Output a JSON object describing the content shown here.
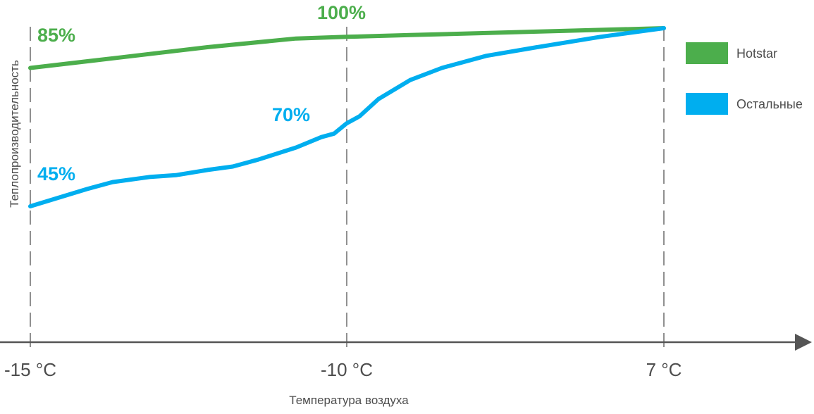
{
  "chart_data": {
    "type": "line",
    "title": "",
    "xlabel": "Температура воздуха",
    "ylabel": "Теплопроизводительность",
    "x_ticks": [
      "-15 °C",
      "-10 °C",
      "7 °C"
    ],
    "grid": "vertical dashed lines at x ticks",
    "legend": "right",
    "series": [
      {
        "name": "Hotstar",
        "color": "#4cae4c",
        "x": [
          0,
          0.14,
          0.28,
          0.42,
          0.5,
          0.6,
          0.8,
          1.0
        ],
        "y": [
          85,
          88,
          91,
          93.5,
          94,
          94.5,
          95.5,
          96.5
        ]
      },
      {
        "name": "Остальные",
        "color": "#00aeef",
        "x": [
          0,
          0.09,
          0.13,
          0.19,
          0.23,
          0.28,
          0.32,
          0.36,
          0.42,
          0.46,
          0.48,
          0.5,
          0.52,
          0.55,
          0.6,
          0.65,
          0.72,
          0.8,
          0.9,
          1.0
        ],
        "y": [
          45,
          50,
          52,
          53.5,
          54,
          55.5,
          56.5,
          58.5,
          62,
          65,
          66,
          69,
          71,
          76,
          81.5,
          85,
          88.5,
          91,
          94,
          96.5
        ]
      }
    ],
    "annotations": [
      {
        "text": "85%",
        "series": 0
      },
      {
        "text": "100%",
        "series": 0
      },
      {
        "text": "45%",
        "series": 1
      },
      {
        "text": "70%",
        "series": 1
      }
    ]
  }
}
